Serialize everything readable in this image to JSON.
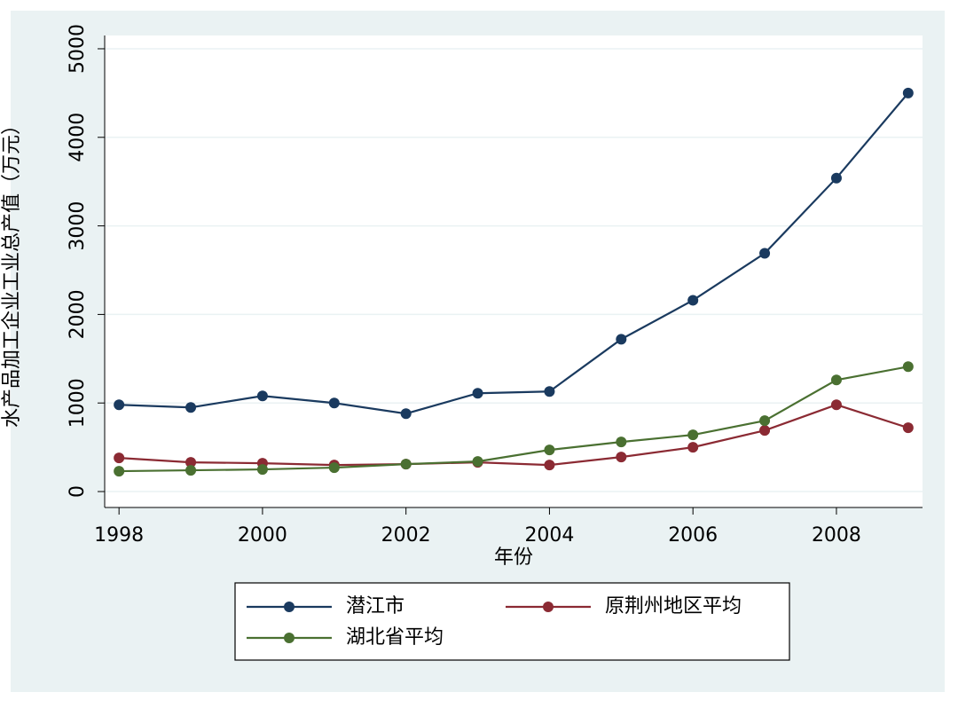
{
  "chart_data": {
    "type": "line",
    "x_label": "年份",
    "y_label": "水产品加工企业工业总产值（万元）",
    "x": [
      1998,
      1999,
      2000,
      2001,
      2002,
      2003,
      2004,
      2005,
      2006,
      2007,
      2008,
      2009
    ],
    "series": [
      {
        "name": "潜江市",
        "color": "#1a3a5f",
        "values": [
          980,
          950,
          1080,
          1000,
          880,
          1110,
          1130,
          1720,
          2160,
          2690,
          3540,
          4500
        ]
      },
      {
        "name": "原荆州地区平均",
        "color": "#8b2a33",
        "values": [
          380,
          330,
          320,
          300,
          310,
          330,
          300,
          390,
          500,
          690,
          980,
          720
        ]
      },
      {
        "name": "湖北省平均",
        "color": "#4a7031",
        "values": [
          230,
          240,
          250,
          270,
          310,
          340,
          470,
          560,
          640,
          800,
          1260,
          1410
        ]
      }
    ],
    "xlim": [
      1997.8,
      2009.2
    ],
    "xticks": [
      1998,
      2000,
      2002,
      2004,
      2006,
      2008
    ],
    "ylim": [
      -180,
      5150
    ],
    "yticks": [
      0,
      1000,
      2000,
      3000,
      4000,
      5000
    ],
    "grid": true
  }
}
